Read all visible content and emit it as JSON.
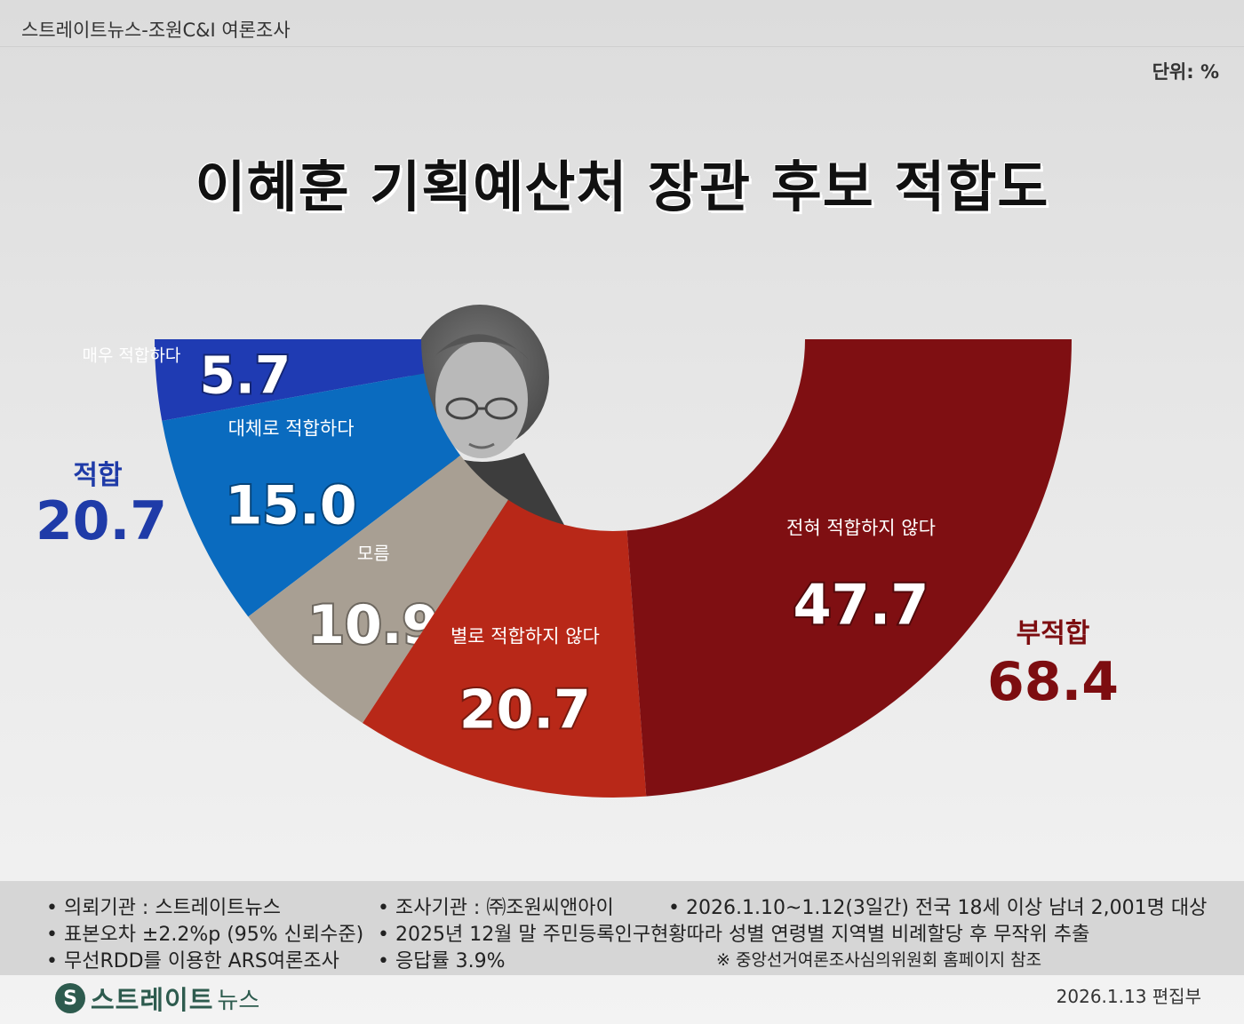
{
  "header": {
    "source": "스트레이트뉴스-조원C&I 여론조사",
    "unit": "단위: %",
    "title": "이혜훈 기획예산처 장관 후보 적합도"
  },
  "summary": {
    "fit_label": "적합",
    "fit_value": "20.7",
    "unfit_label": "부적합",
    "unfit_value": "68.4"
  },
  "colors": {
    "very_fit": "#1f3bb3",
    "fit": "#0a6bbf",
    "unknown": "#a89f93",
    "not_very_fit": "#b82818",
    "not_at_all": "#7f0f12",
    "fit_summary": "#1f3ba8",
    "unfit_summary": "#7d0d10"
  },
  "chart_data": {
    "type": "pie",
    "shape": "half-donut",
    "title": "이혜훈 기획예산처 장관 후보 적합도",
    "slices": [
      {
        "label": "매우 적합하다",
        "value": 5.7,
        "display": "5.7",
        "color": "#1f3bb3"
      },
      {
        "label": "대체로 적합하다",
        "value": 15.0,
        "display": "15.0",
        "color": "#0a6bbf"
      },
      {
        "label": "모름",
        "value": 10.9,
        "display": "10.9",
        "color": "#a89f93"
      },
      {
        "label": "별로 적합하지 않다",
        "value": 20.7,
        "display": "20.7",
        "color": "#b82818"
      },
      {
        "label": "전혀 적합하지 않다",
        "value": 47.7,
        "display": "47.7",
        "color": "#7f0f12"
      }
    ]
  },
  "footer": {
    "line1_col1": "• 의뢰기관 : 스트레이트뉴스",
    "line1_col2": "• 조사기관 : ㈜조원씨앤아이",
    "line1_col3": "• 2026.1.10~1.12(3일간) 전국 18세 이상 남녀 2,001명 대상",
    "line2_col1": "• 표본오차 ±2.2%p (95% 신뢰수준)",
    "line2_col2": "• 2025년 12월 말 주민등록인구현황따라 성별 연령별 지역별 비례할당 후 무작위 추출",
    "line3_col1": "• 무선RDD를 이용한 ARS여론조사",
    "line3_col2": "• 응답률 3.9%",
    "line3_col3": "※ 중앙선거여론조사심의위원회 홈페이지 참조",
    "brand_main": "스트레이트",
    "brand_sub": "뉴스",
    "brand_icon": "S",
    "edit_date": "2026.1.13  편집부"
  }
}
